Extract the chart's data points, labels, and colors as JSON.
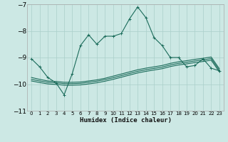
{
  "xlabel": "Humidex (Indice chaleur)",
  "bg_color": "#cce8e4",
  "grid_color": "#aacfca",
  "line_color": "#1a6b5a",
  "xlim": [
    -0.5,
    23.5
  ],
  "ylim": [
    -11.0,
    -7.0
  ],
  "yticks": [
    -11,
    -10,
    -9,
    -8,
    -7
  ],
  "xticks": [
    0,
    1,
    2,
    3,
    4,
    5,
    6,
    7,
    8,
    9,
    10,
    11,
    12,
    13,
    14,
    15,
    16,
    17,
    18,
    19,
    20,
    21,
    22,
    23
  ],
  "main_x": [
    0,
    1,
    2,
    3,
    4,
    5,
    6,
    7,
    8,
    9,
    10,
    11,
    12,
    13,
    14,
    15,
    16,
    17,
    18,
    19,
    20,
    21,
    22,
    23
  ],
  "main_y": [
    -9.05,
    -9.35,
    -9.75,
    -9.95,
    -10.4,
    -9.6,
    -8.55,
    -8.15,
    -8.5,
    -8.2,
    -8.2,
    -8.1,
    -7.55,
    -7.1,
    -7.5,
    -8.25,
    -8.55,
    -9.0,
    -9.0,
    -9.35,
    -9.3,
    -9.05,
    -9.4,
    -9.5
  ],
  "line2_x": [
    0,
    1,
    2,
    3,
    4,
    5,
    6,
    7,
    8,
    9,
    10,
    11,
    12,
    13,
    14,
    15,
    16,
    17,
    18,
    19,
    20,
    21,
    22,
    23
  ],
  "line2_y": [
    -9.75,
    -9.82,
    -9.88,
    -9.9,
    -9.93,
    -9.93,
    -9.92,
    -9.88,
    -9.84,
    -9.78,
    -9.7,
    -9.62,
    -9.54,
    -9.46,
    -9.4,
    -9.35,
    -9.3,
    -9.22,
    -9.16,
    -9.12,
    -9.07,
    -9.03,
    -8.98,
    -9.42
  ],
  "line3_x": [
    0,
    1,
    2,
    3,
    4,
    5,
    6,
    7,
    8,
    9,
    10,
    11,
    12,
    13,
    14,
    15,
    16,
    17,
    18,
    19,
    20,
    21,
    22,
    23
  ],
  "line3_y": [
    -9.82,
    -9.88,
    -9.93,
    -9.95,
    -9.98,
    -9.98,
    -9.97,
    -9.93,
    -9.89,
    -9.83,
    -9.76,
    -9.68,
    -9.6,
    -9.52,
    -9.46,
    -9.41,
    -9.36,
    -9.28,
    -9.22,
    -9.18,
    -9.13,
    -9.09,
    -9.04,
    -9.48
  ],
  "line4_x": [
    0,
    1,
    2,
    3,
    4,
    5,
    6,
    7,
    8,
    9,
    10,
    11,
    12,
    13,
    14,
    15,
    16,
    17,
    18,
    19,
    20,
    21,
    22,
    23
  ],
  "line4_y": [
    -9.88,
    -9.94,
    -9.99,
    -10.01,
    -10.04,
    -10.04,
    -10.03,
    -9.99,
    -9.95,
    -9.89,
    -9.82,
    -9.74,
    -9.66,
    -9.58,
    -9.52,
    -9.47,
    -9.42,
    -9.34,
    -9.28,
    -9.24,
    -9.19,
    -9.15,
    -9.1,
    -9.54
  ]
}
